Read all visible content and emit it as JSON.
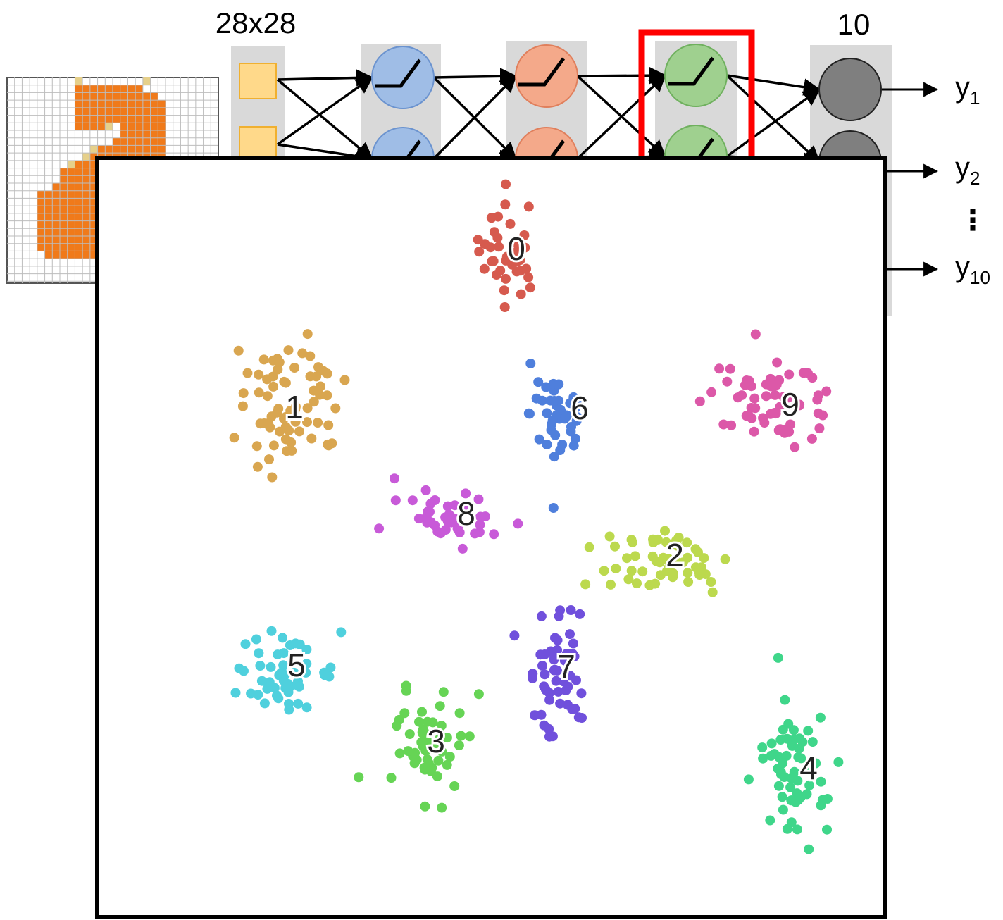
{
  "network": {
    "input_size_label": "28x28",
    "output_size_label": "10",
    "outputs": [
      {
        "base": "y",
        "sub": "1"
      },
      {
        "base": "y",
        "sub": "2"
      },
      {
        "base": "y",
        "sub": "10"
      }
    ],
    "ellipsis": "⋮",
    "input_color": "#ffd98a",
    "input_border": "#f0b030",
    "hidden_layer_colors": [
      "#9fbde6",
      "#f4a98a",
      "#9fd08f"
    ],
    "output_node_color": "#7f7f7f",
    "highlight_color": "#ff0000",
    "column_bg": "#d9d9d9"
  },
  "digit_image": {
    "grid_cells": 28,
    "ink_color": "#f07a1a",
    "faint_color": "#e6d08a"
  },
  "embedding": {
    "clusters": [
      {
        "label": "0",
        "color": "#d65a4e"
      },
      {
        "label": "1",
        "color": "#d9a650"
      },
      {
        "label": "2",
        "color": "#bcd94e"
      },
      {
        "label": "3",
        "color": "#66d455"
      },
      {
        "label": "4",
        "color": "#3fd68a"
      },
      {
        "label": "5",
        "color": "#4fd0dd"
      },
      {
        "label": "6",
        "color": "#4f7fdc"
      },
      {
        "label": "7",
        "color": "#7050dc"
      },
      {
        "label": "8",
        "color": "#c85ad8"
      },
      {
        "label": "9",
        "color": "#dc58a8"
      }
    ]
  }
}
